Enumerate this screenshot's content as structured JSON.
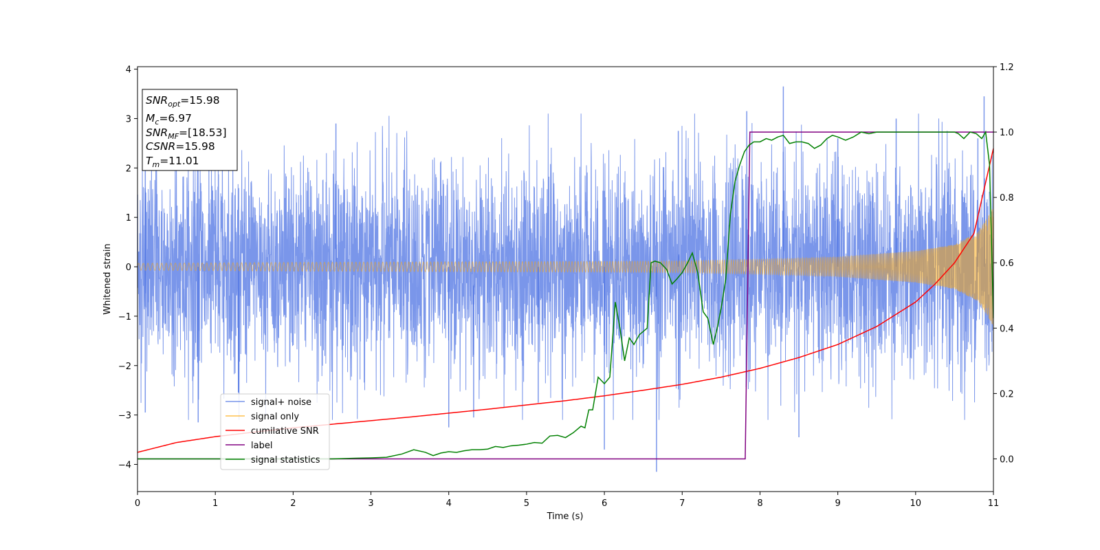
{
  "chart_data": {
    "type": "line",
    "xlabel": "Time (s)",
    "ylabel": "Whitened strain",
    "xlim": [
      0,
      11
    ],
    "ylim_left": [
      -4.55,
      4.05
    ],
    "ylim_right": [
      -0.1,
      1.2
    ],
    "xticks": [
      0,
      1,
      2,
      3,
      4,
      5,
      6,
      7,
      8,
      9,
      10,
      11
    ],
    "yticks_left": [
      -4,
      -3,
      -2,
      -1,
      0,
      1,
      2,
      3,
      4
    ],
    "yticks_right": [
      0.0,
      0.2,
      0.4,
      0.6,
      0.8,
      1.0,
      1.2
    ],
    "tick_format_right": 1,
    "grid": false,
    "legend_position": "lower-left",
    "legend": [
      {
        "label": "signal+ noise",
        "color": "#4169e1"
      },
      {
        "label": "signal only",
        "color": "#ffa500"
      },
      {
        "label": "cumilative SNR",
        "color": "#ff0000"
      },
      {
        "label": "label",
        "color": "#800080"
      },
      {
        "label": "signal statistics",
        "color": "#008000"
      }
    ],
    "info_box": {
      "snr_opt": {
        "base": "SNR",
        "sub": "opt",
        "value": "=15.98"
      },
      "mc": {
        "base": "M",
        "sub": "c",
        "value": "=6.97"
      },
      "snr_mf": {
        "base": "SNR",
        "sub": "MF",
        "value": "=[18.53]"
      },
      "csnr": {
        "base": "CSNR",
        "sub": "",
        "value": "=15.98"
      },
      "tm": {
        "base": "T",
        "sub": "m",
        "value": "=11.01"
      }
    },
    "series": [
      {
        "name": "signal+ noise",
        "axis": "left",
        "color": "#4169e1",
        "noise_std": 1.05,
        "x_range": [
          0,
          11
        ],
        "spikes": [
          [
            0.1,
            3.05
          ],
          [
            0.1,
            -2.95
          ],
          [
            0.78,
            -3.15
          ],
          [
            1.3,
            -2.55
          ],
          [
            2.55,
            2.9
          ],
          [
            4.0,
            -3.25
          ],
          [
            4.32,
            -3.05
          ],
          [
            5.15,
            -2.75
          ],
          [
            6.0,
            -3.7
          ],
          [
            6.67,
            -4.15
          ],
          [
            6.95,
            2.75
          ],
          [
            7.83,
            3.15
          ],
          [
            8.3,
            3.65
          ],
          [
            8.5,
            -3.45
          ],
          [
            9.0,
            2.6
          ],
          [
            10.8,
            2.6
          ],
          [
            10.88,
            3.45
          ],
          [
            9.75,
            3.0
          ]
        ]
      },
      {
        "name": "signal only",
        "axis": "left",
        "color": "#ffa500",
        "amplitude_envelope": [
          [
            0,
            0.07
          ],
          [
            2,
            0.09
          ],
          [
            4,
            0.1
          ],
          [
            6,
            0.11
          ],
          [
            7,
            0.12
          ],
          [
            8,
            0.15
          ],
          [
            9,
            0.2
          ],
          [
            10,
            0.32
          ],
          [
            10.5,
            0.45
          ],
          [
            10.8,
            0.7
          ],
          [
            11.0,
            1.2
          ]
        ]
      },
      {
        "name": "cumilative SNR",
        "axis": "right",
        "color": "#ff0000",
        "x": [
          0,
          0.5,
          1,
          1.5,
          2,
          2.5,
          3,
          3.5,
          4,
          4.5,
          5,
          5.5,
          6,
          6.5,
          7,
          7.5,
          8,
          8.5,
          9,
          9.5,
          10,
          10.25,
          10.5,
          10.75,
          11.0
        ],
        "y": [
          0.02,
          0.05,
          0.068,
          0.082,
          0.095,
          0.106,
          0.117,
          0.128,
          0.14,
          0.152,
          0.165,
          0.178,
          0.193,
          0.21,
          0.228,
          0.25,
          0.277,
          0.31,
          0.35,
          0.405,
          0.48,
          0.535,
          0.6,
          0.69,
          0.95
        ]
      },
      {
        "name": "label",
        "axis": "right",
        "color": "#800080",
        "x": [
          0,
          7.81,
          7.87,
          11.0
        ],
        "y": [
          0.0,
          0.0,
          1.0,
          1.0
        ]
      },
      {
        "name": "signal statistics",
        "axis": "right",
        "color": "#008000",
        "x": [
          0,
          0.5,
          1.0,
          1.5,
          2.0,
          2.5,
          2.8,
          3.0,
          3.2,
          3.4,
          3.55,
          3.7,
          3.8,
          3.9,
          4.0,
          4.1,
          4.2,
          4.3,
          4.4,
          4.5,
          4.6,
          4.7,
          4.8,
          4.9,
          5.0,
          5.1,
          5.2,
          5.3,
          5.4,
          5.5,
          5.6,
          5.7,
          5.75,
          5.8,
          5.85,
          5.92,
          6.0,
          6.07,
          6.14,
          6.2,
          6.26,
          6.32,
          6.38,
          6.45,
          6.55,
          6.6,
          6.65,
          6.72,
          6.8,
          6.87,
          6.93,
          7.0,
          7.07,
          7.13,
          7.2,
          7.27,
          7.33,
          7.4,
          7.45,
          7.5,
          7.56,
          7.62,
          7.68,
          7.74,
          7.8,
          7.86,
          7.92,
          8.0,
          8.08,
          8.15,
          8.23,
          8.3,
          8.38,
          8.46,
          8.54,
          8.62,
          8.7,
          8.78,
          8.86,
          8.93,
          9.0,
          9.1,
          9.2,
          9.3,
          9.4,
          9.5,
          9.6,
          9.7,
          9.8,
          9.9,
          10.0,
          10.1,
          10.2,
          10.3,
          10.4,
          10.5,
          10.55,
          10.62,
          10.7,
          10.78,
          10.85,
          10.9,
          10.95,
          11.0
        ],
        "y": [
          0.0,
          0.0,
          0.0,
          0.0,
          0.0,
          0.0,
          0.002,
          0.003,
          0.005,
          0.015,
          0.028,
          0.02,
          0.01,
          0.018,
          0.022,
          0.02,
          0.025,
          0.028,
          0.028,
          0.03,
          0.038,
          0.035,
          0.04,
          0.042,
          0.045,
          0.05,
          0.048,
          0.07,
          0.072,
          0.065,
          0.08,
          0.1,
          0.095,
          0.15,
          0.15,
          0.25,
          0.23,
          0.25,
          0.48,
          0.4,
          0.3,
          0.37,
          0.35,
          0.38,
          0.4,
          0.6,
          0.605,
          0.6,
          0.58,
          0.535,
          0.55,
          0.57,
          0.6,
          0.63,
          0.57,
          0.45,
          0.43,
          0.35,
          0.4,
          0.46,
          0.55,
          0.75,
          0.85,
          0.9,
          0.94,
          0.96,
          0.97,
          0.97,
          0.98,
          0.975,
          0.985,
          0.99,
          0.965,
          0.97,
          0.97,
          0.965,
          0.95,
          0.96,
          0.98,
          0.99,
          0.985,
          0.975,
          0.985,
          1.0,
          0.995,
          1.0,
          1.0,
          1.0,
          1.0,
          1.0,
          1.0,
          1.0,
          1.0,
          1.0,
          1.0,
          1.0,
          0.995,
          0.98,
          1.0,
          0.995,
          0.98,
          1.0,
          0.9,
          0.43
        ]
      }
    ]
  }
}
